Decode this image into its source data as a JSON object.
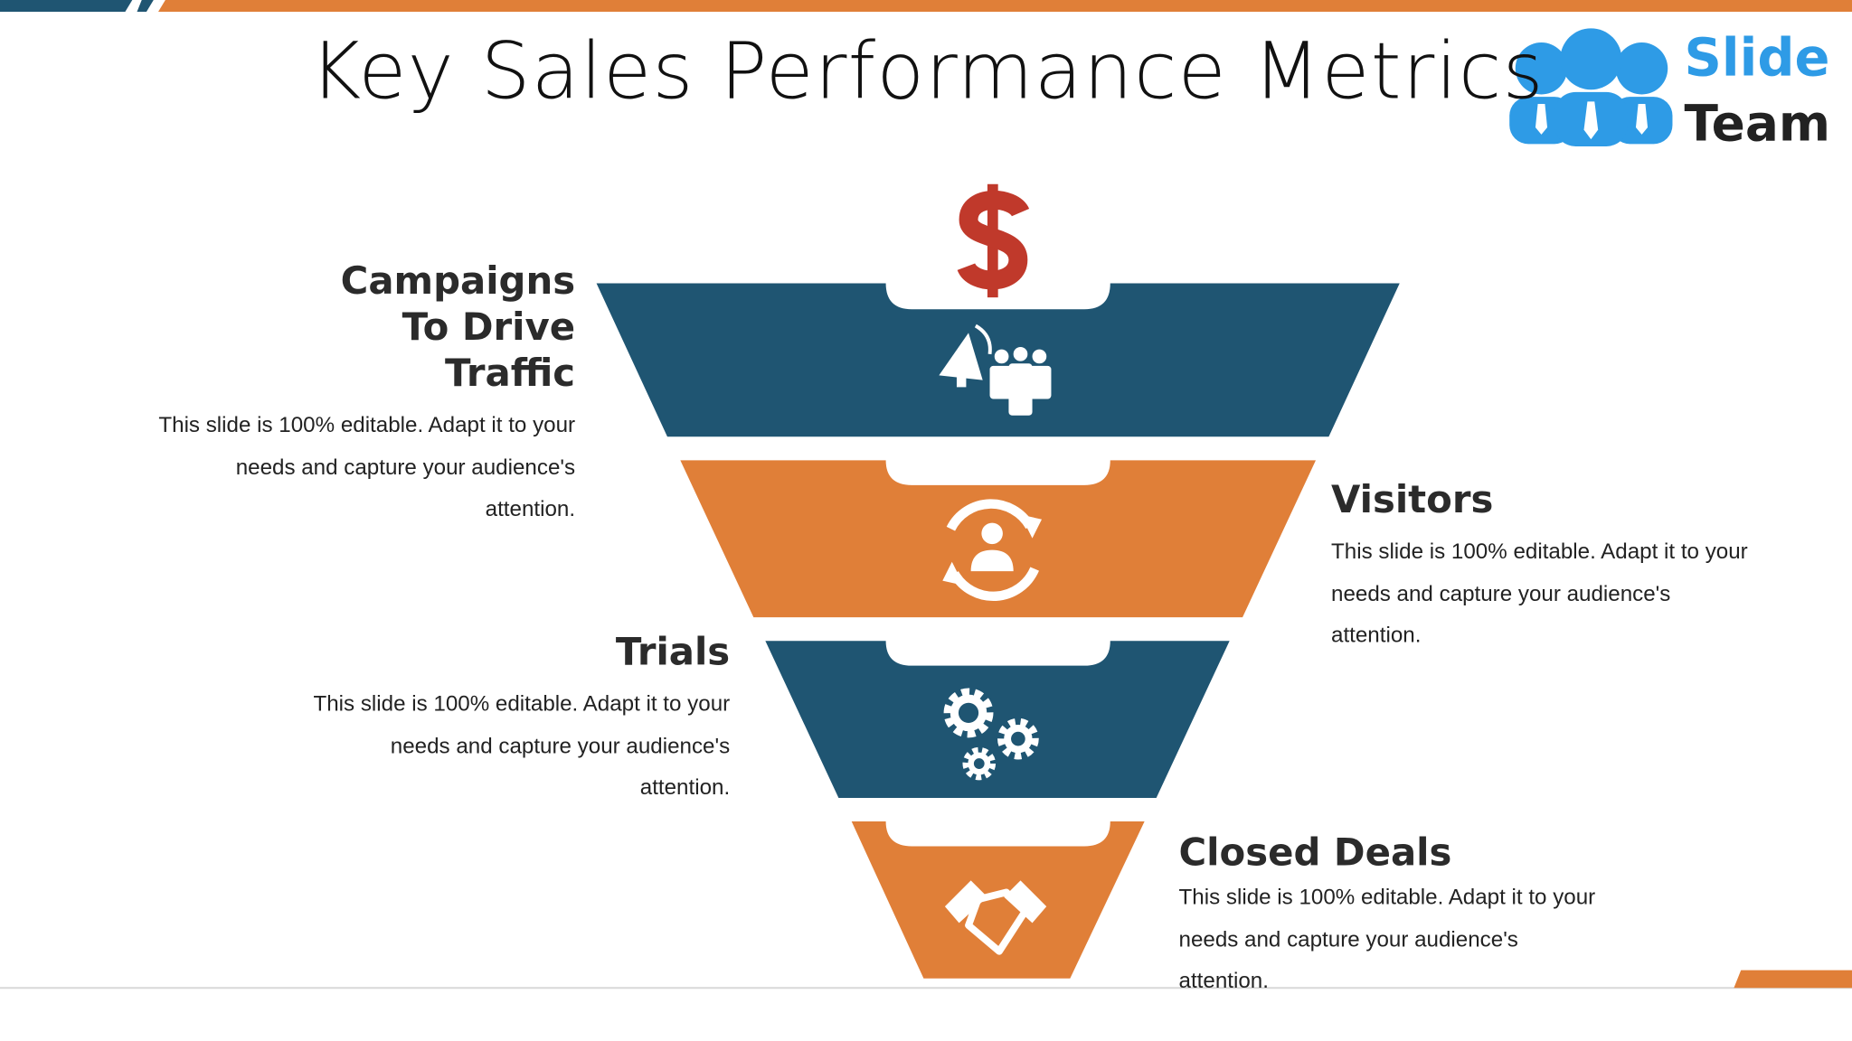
{
  "header": {
    "title": "Key Sales Performance Metrics"
  },
  "logo": {
    "line1": "Slide",
    "line2": "Team"
  },
  "stages": [
    {
      "title": "Campaigns To Drive Traffic",
      "body": "This slide is 100% editable. Adapt it to your needs and capture your audience's attention."
    },
    {
      "title": "Visitors",
      "body": "This slide is 100% editable. Adapt it to your needs and capture your audience's attention."
    },
    {
      "title": "Trials",
      "body": "This slide is 100% editable. Adapt it to your needs and capture your audience's attention."
    },
    {
      "title": "Closed Deals",
      "body": "This slide is 100% editable. Adapt it to your needs and capture your audience's attention."
    }
  ]
}
